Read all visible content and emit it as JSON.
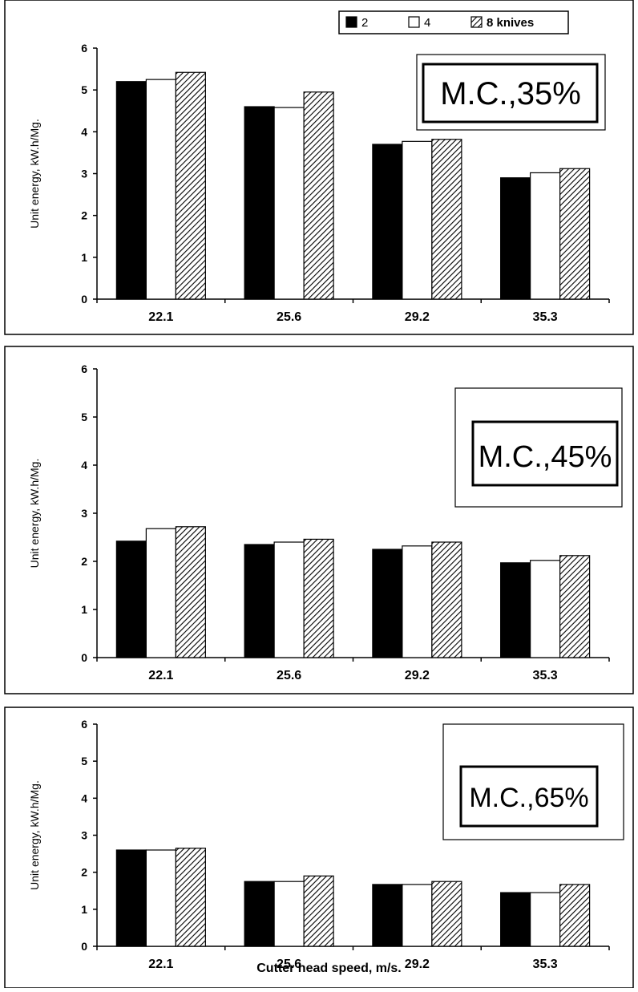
{
  "legend": {
    "items": [
      {
        "label": "2",
        "fill": "solid"
      },
      {
        "label": "4",
        "fill": "white"
      },
      {
        "label": "8 knives",
        "fill": "hatch"
      }
    ]
  },
  "x_axis_title": "Cutter head speed, m/s.",
  "colors": {
    "bar_dark": "#000000",
    "bar_light": "#ffffff",
    "axis": "#000000"
  },
  "chart_data": [
    {
      "type": "bar",
      "annotation": "M.C.,35%",
      "ylabel": "Unit energy, kW.h/Mg.",
      "xlabel": "",
      "categories": [
        "22.1",
        "25.6",
        "29.2",
        "35.3"
      ],
      "ylim": [
        0,
        6
      ],
      "yticks": [
        "0",
        "1",
        "2",
        "3",
        "4",
        "5",
        "6"
      ],
      "series": [
        {
          "name": "2",
          "values": [
            5.2,
            4.6,
            3.7,
            2.9
          ]
        },
        {
          "name": "4",
          "values": [
            5.25,
            4.58,
            3.77,
            3.02
          ]
        },
        {
          "name": "8 knives",
          "values": [
            5.42,
            4.95,
            3.82,
            3.12
          ]
        }
      ]
    },
    {
      "type": "bar",
      "annotation": "M.C.,45%",
      "ylabel": "Unit energy, kW.h/Mg.",
      "xlabel": "",
      "categories": [
        "22.1",
        "25.6",
        "29.2",
        "35.3"
      ],
      "ylim": [
        0,
        6
      ],
      "yticks": [
        "0",
        "1",
        "2",
        "3",
        "4",
        "5",
        "6"
      ],
      "series": [
        {
          "name": "2",
          "values": [
            2.42,
            2.35,
            2.25,
            1.97
          ]
        },
        {
          "name": "4",
          "values": [
            2.68,
            2.4,
            2.32,
            2.02
          ]
        },
        {
          "name": "8 knives",
          "values": [
            2.72,
            2.46,
            2.4,
            2.12
          ]
        }
      ]
    },
    {
      "type": "bar",
      "annotation": "M.C.,65%",
      "ylabel": "Unit energy, kW.h/Mg.",
      "xlabel": "Cutter head speed, m/s.",
      "categories": [
        "22.1",
        "25.6",
        "29.2",
        "35.3"
      ],
      "ylim": [
        0,
        6
      ],
      "yticks": [
        "0",
        "1",
        "2",
        "3",
        "4",
        "5",
        "6"
      ],
      "series": [
        {
          "name": "2",
          "values": [
            2.6,
            1.75,
            1.67,
            1.45
          ]
        },
        {
          "name": "4",
          "values": [
            2.6,
            1.75,
            1.67,
            1.45
          ]
        },
        {
          "name": "8 knives",
          "values": [
            2.65,
            1.9,
            1.75,
            1.67
          ]
        }
      ]
    }
  ]
}
